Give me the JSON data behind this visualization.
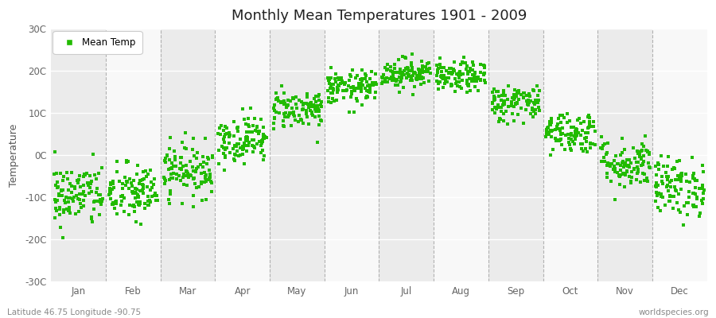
{
  "title": "Monthly Mean Temperatures 1901 - 2009",
  "ylabel": "Temperature",
  "ylim": [
    -30,
    30
  ],
  "yticks": [
    -30,
    -20,
    -10,
    0,
    10,
    20,
    30
  ],
  "ytick_labels": [
    "-30C",
    "-20C",
    "-10C",
    "0C",
    "10C",
    "20C",
    "30C"
  ],
  "month_labels": [
    "Jan",
    "Feb",
    "Mar",
    "Apr",
    "May",
    "Jun",
    "Jul",
    "Aug",
    "Sep",
    "Oct",
    "Nov",
    "Dec"
  ],
  "dot_color": "#22bb00",
  "background_color": "#f5f5f5",
  "band_color_odd": "#ebebeb",
  "band_color_even": "#f8f8f8",
  "grid_color": "#ffffff",
  "caption_left": "Latitude 46.75 Longitude -90.75",
  "caption_right": "worldspecies.org",
  "legend_label": "Mean Temp",
  "monthly_means": [
    -9.5,
    -9.0,
    -3.5,
    3.8,
    11.0,
    16.0,
    19.5,
    18.5,
    12.5,
    5.5,
    -2.0,
    -7.5
  ],
  "monthly_stds": [
    3.8,
    3.5,
    3.2,
    2.8,
    2.3,
    2.0,
    1.8,
    1.8,
    2.2,
    2.5,
    3.0,
    3.5
  ],
  "n_years": 109,
  "seed": 42
}
